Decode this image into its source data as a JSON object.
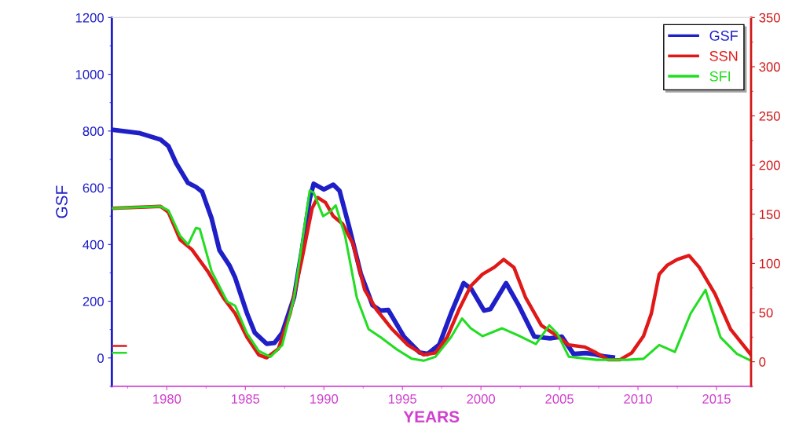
{
  "chart_data": {
    "type": "line",
    "xlabel": "YEARS",
    "ylabel": "GSF",
    "xlim": [
      1976.5,
      2017.2
    ],
    "xticks": [
      1980,
      1985,
      1990,
      1995,
      2000,
      2005,
      2010,
      2015
    ],
    "ylim": [
      -100,
      1200
    ],
    "yticks": [
      0,
      200,
      400,
      600,
      800,
      1000,
      1200
    ],
    "y2lim": [
      -25,
      350
    ],
    "y2ticks": [
      0,
      50,
      100,
      150,
      200,
      250,
      300,
      350
    ],
    "legend": "top right",
    "grid": false,
    "marker": "none",
    "line_style": "solid",
    "series": [
      {
        "name": "GSF",
        "color": "#1f1fc8",
        "x": [
          1976.5,
          1978.3,
          1979.6,
          1980.1,
          1980.6,
          1981.35,
          1981.85,
          1982.25,
          1982.85,
          1983.35,
          1984.0,
          1984.35,
          1985.1,
          1985.6,
          1986.35,
          1986.85,
          1987.35,
          1988.1,
          1988.6,
          1989.1,
          1989.35,
          1990.0,
          1990.6,
          1991.0,
          1991.6,
          1992.35,
          1993.1,
          1993.6,
          1994.1,
          1995.1,
          1996.1,
          1996.6,
          1997.35,
          1998.1,
          1998.9,
          1999.4,
          2000.2,
          2000.6,
          2001.6,
          2002.4,
          2003.4,
          2004.4,
          2005.15,
          2005.9,
          2006.65,
          2007.15,
          2007.9,
          2008.4
        ],
        "values": [
          805,
          792,
          770,
          747,
          686,
          617,
          603,
          586,
          492,
          380,
          325,
          283,
          158,
          89,
          50,
          53,
          89,
          214,
          380,
          561,
          614,
          594,
          611,
          589,
          464,
          297,
          186,
          167,
          169,
          75,
          19,
          14,
          47,
          158,
          264,
          242,
          167,
          172,
          264,
          186,
          75,
          69,
          75,
          14,
          17,
          14,
          5,
          2
        ]
      },
      {
        "name": "SSN",
        "color": "#e01818",
        "axis": "y2",
        "x": [
          1976.5,
          1979.6,
          1980.1,
          1980.85,
          1981.6,
          1982.6,
          1983.6,
          1984.35,
          1985.1,
          1985.85,
          1986.35,
          1987.1,
          1987.85,
          1988.6,
          1989.25,
          1989.6,
          1990.1,
          1990.6,
          1991.2,
          1991.85,
          1992.6,
          1993.35,
          1994.35,
          1995.35,
          1996.35,
          1997.1,
          1997.85,
          1998.6,
          1999.35,
          2000.1,
          2000.85,
          2001.45,
          2002.1,
          2002.85,
          2003.85,
          2004.6,
          2005.6,
          2006.6,
          2007.35,
          2008.1,
          2008.85,
          2009.6,
          2010.35,
          2010.85,
          2011.35,
          2011.85,
          2012.5,
          2013.25,
          2013.9,
          2014.9,
          2015.9,
          2017.2
        ],
        "values": [
          156,
          158,
          152,
          124,
          114,
          92,
          65,
          49,
          25,
          7,
          4,
          13,
          49,
          104,
          156,
          167,
          162,
          148,
          140,
          120,
          73,
          53,
          33,
          17,
          7,
          9,
          25,
          53,
          77,
          89,
          96,
          104,
          96,
          65,
          37,
          29,
          17,
          15,
          9,
          2,
          2,
          9,
          26,
          49,
          89,
          98,
          104,
          108,
          96,
          69,
          33,
          7
        ]
      },
      {
        "name": "SFI",
        "color": "#22dd22",
        "axis": "y2",
        "x": [
          1976.5,
          1979.6,
          1980.1,
          1980.85,
          1981.35,
          1981.85,
          1982.1,
          1982.85,
          1983.85,
          1984.35,
          1985.1,
          1985.85,
          1986.6,
          1987.35,
          1988.1,
          1988.6,
          1989.1,
          1989.35,
          1989.95,
          1990.35,
          1990.75,
          1991.35,
          1992.1,
          1992.85,
          1993.6,
          1994.6,
          1995.6,
          1996.35,
          1997.1,
          1998.1,
          1998.8,
          1999.35,
          2000.1,
          2001.35,
          2002.35,
          2003.5,
          2004.35,
          2004.85,
          2005.6,
          2007.35,
          2009.35,
          2010.35,
          2011.35,
          2012.35,
          2013.35,
          2014.3,
          2015.25,
          2016.3,
          2017.2
        ],
        "values": [
          156,
          158,
          154,
          128,
          119,
          136,
          135,
          92,
          61,
          57,
          29,
          11,
          5,
          17,
          65,
          120,
          174,
          172,
          148,
          152,
          159,
          128,
          65,
          33,
          25,
          13,
          3,
          1,
          5,
          25,
          44,
          34,
          26,
          34,
          27,
          18,
          37,
          29,
          5,
          2,
          2,
          3,
          17,
          10,
          49,
          73,
          25,
          8,
          1
        ]
      },
      {
        "color": "#e01818",
        "axis": "y2",
        "x": [
          1976.5,
          1977.4
        ],
        "values": [
          16,
          16
        ]
      },
      {
        "color": "#22dd22",
        "axis": "y2",
        "x": [
          1976.5,
          1977.4
        ],
        "values": [
          9,
          9
        ]
      }
    ]
  }
}
